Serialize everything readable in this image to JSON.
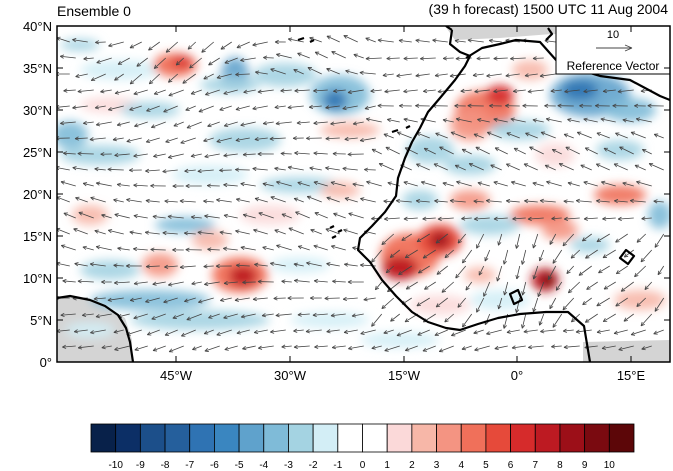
{
  "title_left": "Ensemble 0",
  "title_right": "(39 h forecast) 1500 UTC 11 Aug 2004",
  "lat_ticks": [
    "40°N",
    "35°N",
    "30°N",
    "25°N",
    "20°N",
    "15°N",
    "10°N",
    "5°N",
    "0°"
  ],
  "lon_ticks": [
    "45°W",
    "30°W",
    "15°W",
    "0°",
    "15°E"
  ],
  "ref_vector": {
    "magnitude": "10",
    "label": "Reference Vector"
  },
  "colorbar": {
    "labels": [
      "-10",
      "-9",
      "-8",
      "-7",
      "-6",
      "-5",
      "-4",
      "-3",
      "-2",
      "-1",
      "0",
      "1",
      "2",
      "3",
      "4",
      "5",
      "6",
      "7",
      "8",
      "9",
      "10"
    ],
    "colors": [
      "#08214a",
      "#0c2f66",
      "#1c4f8a",
      "#255f9c",
      "#2f73b3",
      "#3a86c0",
      "#5fa2cc",
      "#7fbbd8",
      "#a4d3e2",
      "#d3eef6",
      "#ffffff",
      "#ffffff",
      "#fbd9d9",
      "#f7b7a8",
      "#f49482",
      "#f0705a",
      "#e64a3a",
      "#d62b2b",
      "#bd1a22",
      "#9c0f18",
      "#7a0a10",
      "#5c0608"
    ]
  },
  "palette": {
    "land_mask": "#d4d4d4",
    "coast": "#000000",
    "arrow": "#444444"
  }
}
